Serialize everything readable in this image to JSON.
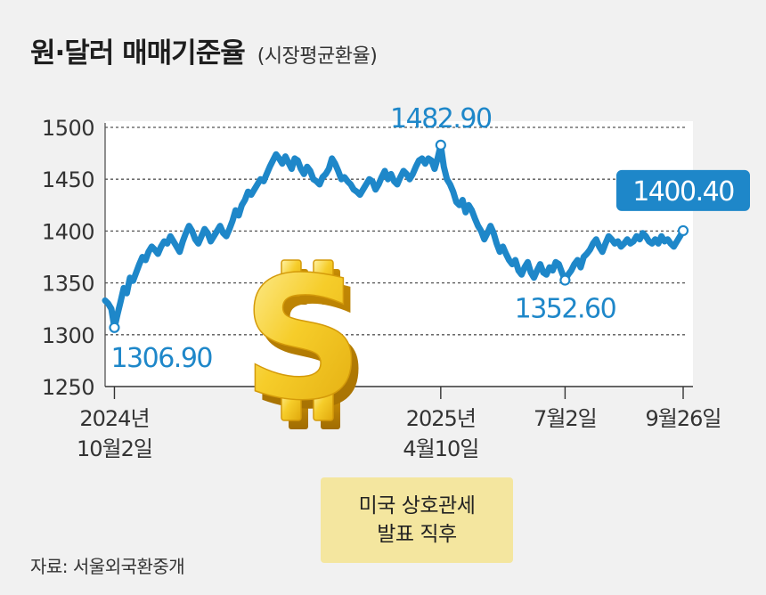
{
  "header": {
    "title": "원·달러 매매기준율",
    "subtitle": "(시장평균환율)"
  },
  "annotation": {
    "line1": "미국 상호관세",
    "line2": "발표 직후"
  },
  "source": "자료: 서울외국환중개",
  "colors": {
    "line": "#1e87c9",
    "accent_box": "#1e87c9",
    "note_box": "#f4e69f",
    "background": "#f1f1f1",
    "plot_area": "#ffffff"
  },
  "icons": [
    "dollar-sign-icon"
  ],
  "chart_data": {
    "type": "line",
    "title": "원·달러 매매기준율",
    "subtitle": "(시장평균환율)",
    "ylim": [
      1250,
      1500
    ],
    "yticks": [
      1250,
      1300,
      1350,
      1400,
      1450,
      1500
    ],
    "grid": "horizontal dashed",
    "x_ticks": [
      {
        "line1": "2024년",
        "line2": "10월2일"
      },
      {
        "line1": "2025년",
        "line2": "4월10일"
      },
      {
        "line1": "7월2일",
        "line2": ""
      },
      {
        "line1": "9월26일",
        "line2": ""
      }
    ],
    "series": [
      {
        "values": [
          1333,
          1330,
          1325,
          1306.9,
          1320,
          1332,
          1345,
          1340,
          1355,
          1352,
          1360,
          1368,
          1375,
          1372,
          1380,
          1385,
          1382,
          1378,
          1385,
          1390,
          1388,
          1395,
          1390,
          1385,
          1380,
          1390,
          1398,
          1405,
          1400,
          1392,
          1388,
          1395,
          1402,
          1398,
          1390,
          1395,
          1400,
          1405,
          1398,
          1395,
          1402,
          1410,
          1420,
          1415,
          1425,
          1430,
          1438,
          1435,
          1440,
          1445,
          1450,
          1448,
          1455,
          1462,
          1468,
          1474,
          1470,
          1465,
          1472,
          1466,
          1460,
          1470,
          1468,
          1460,
          1455,
          1462,
          1458,
          1450,
          1448,
          1445,
          1452,
          1455,
          1460,
          1470,
          1465,
          1458,
          1450,
          1452,
          1448,
          1445,
          1440,
          1438,
          1435,
          1440,
          1445,
          1450,
          1448,
          1440,
          1445,
          1452,
          1458,
          1450,
          1455,
          1448,
          1445,
          1452,
          1458,
          1455,
          1450,
          1455,
          1462,
          1468,
          1470,
          1465,
          1470,
          1468,
          1460,
          1470,
          1482.9,
          1462,
          1450,
          1445,
          1438,
          1428,
          1425,
          1430,
          1418,
          1425,
          1420,
          1412,
          1405,
          1400,
          1392,
          1398,
          1405,
          1398,
          1388,
          1380,
          1385,
          1378,
          1372,
          1368,
          1372,
          1362,
          1358,
          1365,
          1370,
          1360,
          1355,
          1362,
          1368,
          1360,
          1358,
          1365,
          1362,
          1370,
          1368,
          1360,
          1352.6,
          1358,
          1362,
          1368,
          1372,
          1365,
          1375,
          1378,
          1382,
          1388,
          1392,
          1385,
          1380,
          1388,
          1395,
          1392,
          1388,
          1390,
          1385,
          1388,
          1392,
          1388,
          1390,
          1395,
          1392,
          1398,
          1395,
          1390,
          1388,
          1392,
          1388,
          1395,
          1390,
          1392,
          1388,
          1385,
          1390,
          1395,
          1400.4
        ],
        "labels": [
          {
            "value": 1306.9,
            "text": "1306.90"
          },
          {
            "value": 1482.9,
            "text": "1482.90"
          },
          {
            "value": 1352.6,
            "text": "1352.60"
          },
          {
            "value": 1400.4,
            "text": "1400.40"
          }
        ]
      }
    ]
  }
}
